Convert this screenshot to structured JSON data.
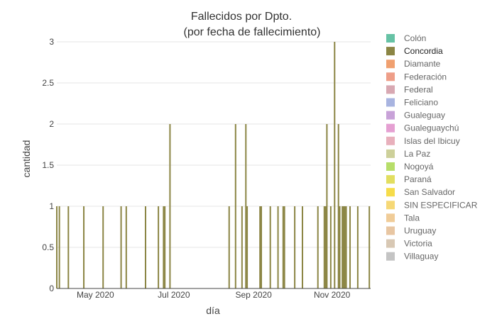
{
  "chart_data": {
    "type": "bar",
    "title_lines": [
      "Fallecidos por Dpto.",
      "(por fecha de fallecimiento)"
    ],
    "xlabel": "día",
    "ylabel": "cantidad",
    "ylim": [
      0,
      3
    ],
    "xlim": [
      "2020-04-01",
      "2020-12-01"
    ],
    "yticks": [
      0,
      0.5,
      1,
      1.5,
      2,
      2.5,
      3
    ],
    "ytick_labels": [
      "0",
      "0.5",
      "1",
      "1.5",
      "2",
      "2.5",
      "3"
    ],
    "xticks": [
      {
        "date": "2020-05-01",
        "label": "May 2020"
      },
      {
        "date": "2020-07-01",
        "label": "Jul 2020"
      },
      {
        "date": "2020-09-01",
        "label": "Sep 2020"
      },
      {
        "date": "2020-11-01",
        "label": "Nov 2020"
      }
    ],
    "grid": true,
    "legend_position": "right",
    "series": [
      {
        "name": "Concordia",
        "color": "#8b8544",
        "points": [
          [
            "2020-04-01",
            1
          ],
          [
            "2020-04-03",
            1
          ],
          [
            "2020-04-10",
            1
          ],
          [
            "2020-04-22",
            1
          ],
          [
            "2020-05-07",
            1
          ],
          [
            "2020-05-21",
            1
          ],
          [
            "2020-05-25",
            1
          ],
          [
            "2020-06-09",
            1
          ],
          [
            "2020-06-19",
            1
          ],
          [
            "2020-06-23",
            1
          ],
          [
            "2020-06-24",
            1
          ],
          [
            "2020-06-28",
            2
          ],
          [
            "2020-08-13",
            1
          ],
          [
            "2020-08-18",
            2
          ],
          [
            "2020-08-23",
            1
          ],
          [
            "2020-08-26",
            2
          ],
          [
            "2020-08-27",
            1
          ],
          [
            "2020-09-06",
            1
          ],
          [
            "2020-09-07",
            1
          ],
          [
            "2020-09-14",
            1
          ],
          [
            "2020-09-20",
            1
          ],
          [
            "2020-09-24",
            1
          ],
          [
            "2020-09-25",
            1
          ],
          [
            "2020-10-03",
            1
          ],
          [
            "2020-10-09",
            1
          ],
          [
            "2020-10-21",
            1
          ],
          [
            "2020-10-26",
            1
          ],
          [
            "2020-10-27",
            1
          ],
          [
            "2020-10-28",
            2
          ],
          [
            "2020-10-31",
            1
          ],
          [
            "2020-11-03",
            3
          ],
          [
            "2020-11-06",
            2
          ],
          [
            "2020-11-07",
            1
          ],
          [
            "2020-11-09",
            1
          ],
          [
            "2020-11-10",
            1
          ],
          [
            "2020-11-11",
            1
          ],
          [
            "2020-11-12",
            1
          ],
          [
            "2020-11-15",
            1
          ],
          [
            "2020-11-21",
            1
          ],
          [
            "2020-11-30",
            1
          ]
        ]
      }
    ],
    "legend": [
      {
        "name": "Colón",
        "color": "#66c2a5",
        "active": false
      },
      {
        "name": "Concordia",
        "color": "#8b8544",
        "active": true
      },
      {
        "name": "Diamante",
        "color": "#f0a070",
        "active": false
      },
      {
        "name": "Federación",
        "color": "#ee9e88",
        "active": false
      },
      {
        "name": "Federal",
        "color": "#d8a8b2",
        "active": false
      },
      {
        "name": "Feliciano",
        "color": "#a8b4e0",
        "active": false
      },
      {
        "name": "Gualeguay",
        "color": "#c8a2d8",
        "active": false
      },
      {
        "name": "Gualeguaychú",
        "color": "#e5a0d2",
        "active": false
      },
      {
        "name": "Islas del Ibicuy",
        "color": "#e8b0bc",
        "active": false
      },
      {
        "name": "La Paz",
        "color": "#cdd09a",
        "active": false
      },
      {
        "name": "Nogoyá",
        "color": "#b7de6a",
        "active": false
      },
      {
        "name": "Paraná",
        "color": "#e2de60",
        "active": false
      },
      {
        "name": "San Salvador",
        "color": "#f6dc4a",
        "active": false
      },
      {
        "name": "SIN ESPECIFICAR",
        "color": "#f6d876",
        "active": false
      },
      {
        "name": "Tala",
        "color": "#f0cc98",
        "active": false
      },
      {
        "name": "Uruguay",
        "color": "#e8c6a2",
        "active": false
      },
      {
        "name": "Victoria",
        "color": "#d8c8b4",
        "active": false
      },
      {
        "name": "Villaguay",
        "color": "#c4c4c4",
        "active": false
      }
    ]
  }
}
